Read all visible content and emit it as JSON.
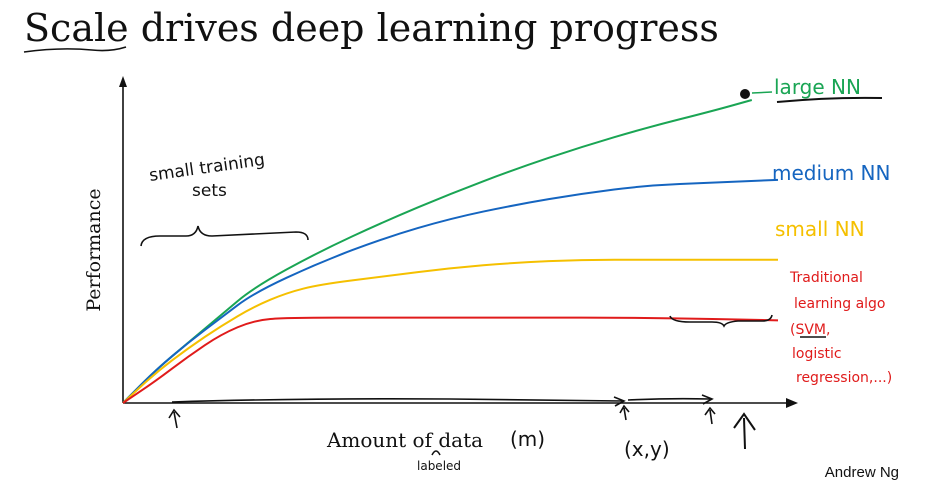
{
  "title": {
    "part1": "Scale",
    "part2": " drives deep learning progress"
  },
  "author": "Andrew Ng",
  "chart_data": {
    "type": "line",
    "xlabel": "Amount of data",
    "ylabel": "Performance",
    "series": [
      {
        "name": "large NN",
        "color": "#1aa554",
        "values": [
          [
            0,
            0
          ],
          [
            0.05,
            0.12
          ],
          [
            0.1,
            0.22
          ],
          [
            0.15,
            0.32
          ],
          [
            0.2,
            0.42
          ],
          [
            0.3,
            0.55
          ],
          [
            0.4,
            0.66
          ],
          [
            0.5,
            0.76
          ],
          [
            0.6,
            0.85
          ],
          [
            0.7,
            0.93
          ],
          [
            0.8,
            1.0
          ],
          [
            0.9,
            1.06
          ],
          [
            0.96,
            1.1
          ]
        ]
      },
      {
        "name": "medium NN",
        "color": "#1565c0",
        "values": [
          [
            0,
            0
          ],
          [
            0.05,
            0.12
          ],
          [
            0.1,
            0.22
          ],
          [
            0.15,
            0.31
          ],
          [
            0.2,
            0.4
          ],
          [
            0.3,
            0.51
          ],
          [
            0.4,
            0.6
          ],
          [
            0.5,
            0.67
          ],
          [
            0.6,
            0.72
          ],
          [
            0.7,
            0.76
          ],
          [
            0.8,
            0.79
          ],
          [
            0.9,
            0.8
          ],
          [
            1.0,
            0.81
          ]
        ]
      },
      {
        "name": "small NN",
        "color": "#f5c000",
        "values": [
          [
            0,
            0
          ],
          [
            0.05,
            0.11
          ],
          [
            0.1,
            0.2
          ],
          [
            0.15,
            0.28
          ],
          [
            0.2,
            0.35
          ],
          [
            0.25,
            0.4
          ],
          [
            0.3,
            0.43
          ],
          [
            0.4,
            0.46
          ],
          [
            0.5,
            0.49
          ],
          [
            0.6,
            0.51
          ],
          [
            0.7,
            0.52
          ],
          [
            0.8,
            0.52
          ],
          [
            0.9,
            0.52
          ],
          [
            1.0,
            0.52
          ]
        ]
      },
      {
        "name": "Traditional learning algo (SVM, logistic regression,...)",
        "color": "#e01b1b",
        "values": [
          [
            0,
            0
          ],
          [
            0.05,
            0.08
          ],
          [
            0.1,
            0.17
          ],
          [
            0.15,
            0.25
          ],
          [
            0.2,
            0.3
          ],
          [
            0.25,
            0.31
          ],
          [
            0.4,
            0.31
          ],
          [
            0.6,
            0.31
          ],
          [
            0.8,
            0.31
          ],
          [
            1.0,
            0.3
          ]
        ]
      }
    ]
  },
  "annotations": {
    "small_training_sets_1": "small training",
    "small_training_sets_2": "sets",
    "m": "(m)",
    "labeled": "labeled",
    "xy": "(x,y)",
    "large_nn": "large NN",
    "medium_nn": "medium NN",
    "small_nn": "small NN",
    "trad_1": "Traditional",
    "trad_2": "learning algo",
    "trad_3": "(SVM,",
    "trad_4": "logistic",
    "trad_5": "regression,...)"
  }
}
